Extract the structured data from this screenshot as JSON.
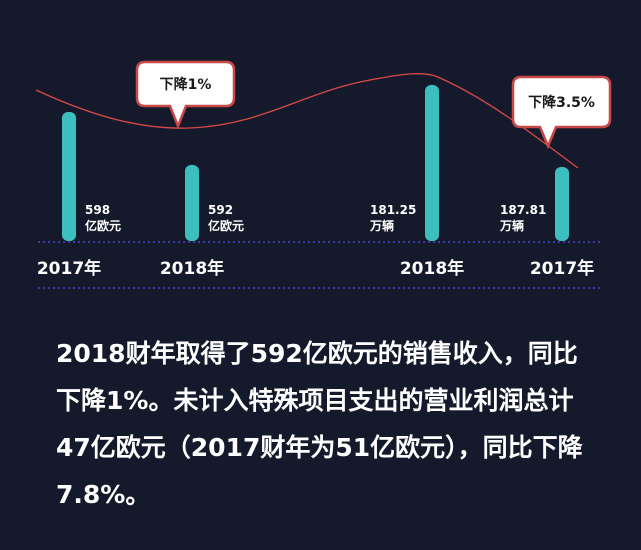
{
  "chart_data": {
    "type": "bar",
    "groups": [
      {
        "metric": "revenue",
        "unit": "亿欧元",
        "bars": [
          {
            "x": "2017年",
            "value": 598,
            "value_label": "598",
            "unit_label": "亿欧元"
          },
          {
            "x": "2018年",
            "value": 592,
            "value_label": "592",
            "unit_label": "亿欧元"
          }
        ]
      },
      {
        "metric": "sales",
        "unit": "万辆",
        "bars": [
          {
            "x": "2018年",
            "value": 181.25,
            "value_label": "181.25",
            "unit_label": "万辆"
          },
          {
            "x": "2017年",
            "value": 187.81,
            "value_label": "187.81",
            "unit_label": "万辆"
          }
        ]
      }
    ],
    "callouts": [
      {
        "text": "下降1%",
        "bar_ref": "revenue-2018"
      },
      {
        "text": "下降3.5%",
        "bar_ref": "sales-2017"
      }
    ],
    "colors": {
      "bar": "#3dbfc0",
      "trend_line": "#d84848",
      "callout_border": "#c84848",
      "callout_fill": "#ffffff",
      "callout_text": "#1a1a1a",
      "dotted_line": "#3a3aa8",
      "background": "#141a2c"
    }
  },
  "body_text": [
    "2018财年取得了592亿欧元的销售收入，同比",
    "下降1%。未计入特殊项目支出的营业利润总计",
    "47亿欧元（2017财年为51亿欧元），同比下降",
    "7.8%。"
  ]
}
